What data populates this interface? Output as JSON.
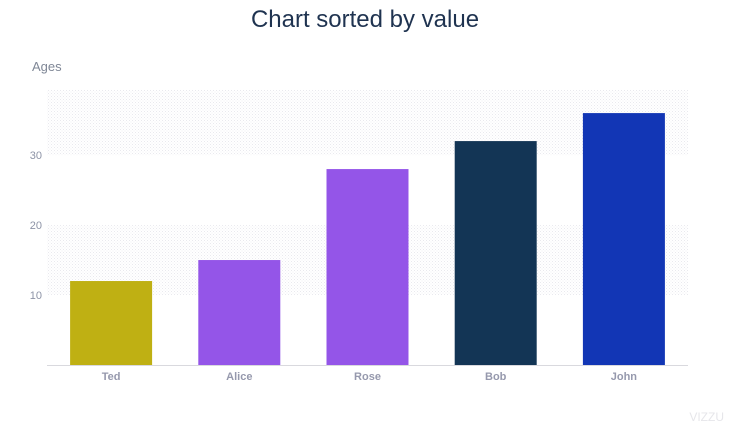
{
  "chart_data": {
    "type": "bar",
    "title": "Chart sorted by value",
    "ylabel": "Ages",
    "xlabel": "",
    "categories": [
      "Ted",
      "Alice",
      "Rose",
      "Bob",
      "John"
    ],
    "values": [
      12,
      15,
      28,
      32,
      36
    ],
    "colors": [
      "#bfb013",
      "#9455e8",
      "#9455e8",
      "#133555",
      "#1236b5"
    ],
    "ylim": [
      0,
      39.3
    ],
    "yticks": [
      10,
      20,
      30
    ],
    "grid": "alternating bands",
    "legend": "none"
  },
  "watermark": "VIZZU"
}
